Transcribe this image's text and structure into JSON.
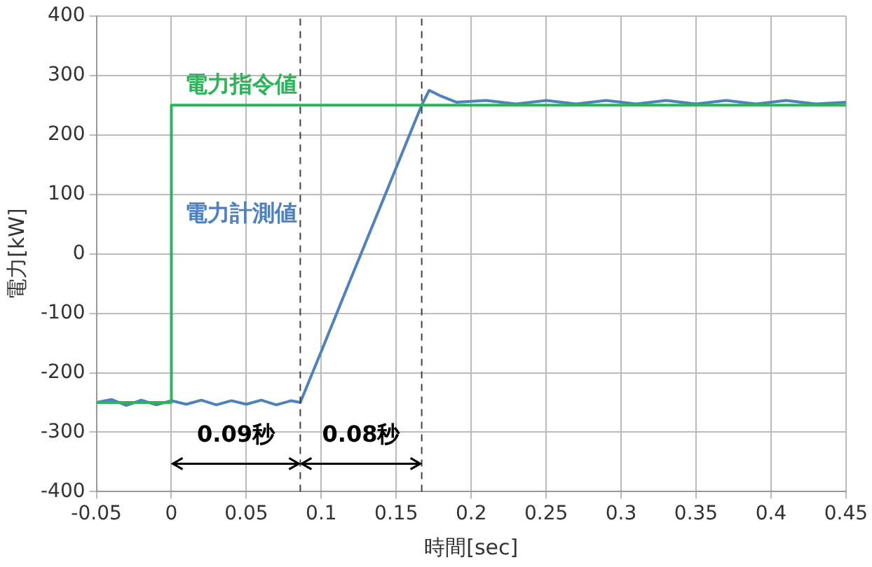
{
  "chart_data": {
    "type": "line",
    "xlabel": "時間[sec]",
    "ylabel": "電力[kW]",
    "xlim": [
      -0.05,
      0.45
    ],
    "xticks": [
      -0.05,
      0,
      0.05,
      0.1,
      0.15,
      0.2,
      0.25,
      0.3,
      0.35,
      0.4,
      0.45
    ],
    "ylim": [
      -400,
      400
    ],
    "yticks": [
      -400,
      -300,
      -200,
      -100,
      0,
      100,
      200,
      300,
      400
    ],
    "grid": true,
    "legend": false,
    "marker": "none",
    "line_style": "solid",
    "series": [
      {
        "name": "電力指令値",
        "color": "#2db45a",
        "x": [
          -0.05,
          0,
          0,
          0.45
        ],
        "values": [
          -250,
          -250,
          250,
          250
        ]
      },
      {
        "name": "電力計測値",
        "color": "#4f81bd",
        "x": [
          -0.05,
          -0.04,
          -0.03,
          -0.02,
          -0.01,
          0,
          0.01,
          0.02,
          0.03,
          0.04,
          0.05,
          0.06,
          0.07,
          0.08,
          0.086,
          0.1,
          0.12,
          0.14,
          0.16,
          0.167,
          0.172,
          0.18,
          0.19,
          0.21,
          0.23,
          0.25,
          0.27,
          0.29,
          0.31,
          0.33,
          0.35,
          0.37,
          0.39,
          0.41,
          0.43,
          0.45
        ],
        "values": [
          -250,
          -245,
          -255,
          -246,
          -254,
          -247,
          -253,
          -246,
          -254,
          -247,
          -253,
          -246,
          -254,
          -247,
          -250,
          -164,
          -40,
          83,
          207,
          250,
          275,
          265,
          255,
          258,
          252,
          258,
          252,
          258,
          252,
          258,
          252,
          258,
          252,
          258,
          252,
          255
        ]
      }
    ],
    "ref_lines": [
      {
        "axis": "x",
        "value": 0.086,
        "color": "#404040",
        "line_style": "dashed"
      },
      {
        "axis": "x",
        "value": 0.167,
        "color": "#404040",
        "line_style": "dashed"
      }
    ],
    "annotations": [
      "0.09秒",
      "0.08秒"
    ]
  }
}
